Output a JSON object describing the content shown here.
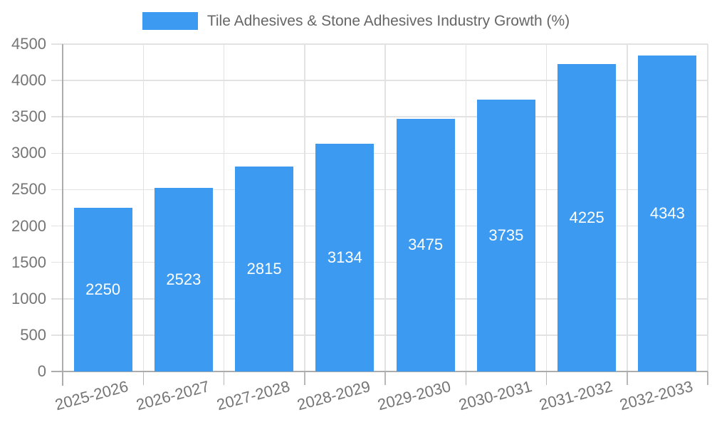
{
  "chart_data": {
    "type": "bar",
    "title": "Tile Adhesives & Stone Adhesives Industry Growth (%)",
    "categories": [
      "2025-2026",
      "2026-2027",
      "2027-2028",
      "2028-2029",
      "2029-2030",
      "2030-2031",
      "2031-2032",
      "2032-2033"
    ],
    "values": [
      2250,
      2523,
      2815,
      3134,
      3475,
      3735,
      4225,
      4343
    ],
    "xlabel": "",
    "ylabel": "",
    "ylim": [
      0,
      4500
    ],
    "y_ticks": [
      0,
      500,
      1000,
      1500,
      2000,
      2500,
      3000,
      3500,
      4000,
      4500
    ],
    "grid": true,
    "legend_position": "top",
    "x_label_rotation": -15,
    "colors": {
      "bar": "#3C9BF0",
      "bar_value_label": "#FFFFFF",
      "axis_label": "#757575",
      "legend_text": "#666666",
      "grid_line": "#E2E2E2",
      "axis_line": "#ACACAC",
      "tick_line": "#B8B8B8",
      "background": "#FFFFFF"
    }
  }
}
